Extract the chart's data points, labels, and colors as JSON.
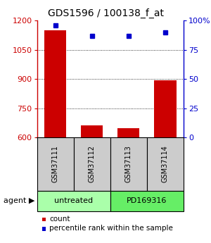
{
  "title": "GDS1596 / 100138_f_at",
  "samples": [
    "GSM37111",
    "GSM37112",
    "GSM37113",
    "GSM37114"
  ],
  "counts": [
    1150,
    660,
    648,
    893
  ],
  "percentiles": [
    96,
    87,
    87,
    90
  ],
  "ylim_left": [
    600,
    1200
  ],
  "yticks_left": [
    600,
    750,
    900,
    1050,
    1200
  ],
  "ylim_right": [
    0,
    100
  ],
  "yticks_right": [
    0,
    25,
    50,
    75,
    100
  ],
  "bar_color": "#cc0000",
  "dot_color": "#0000cc",
  "groups": [
    {
      "label": "untreated",
      "indices": [
        0,
        1
      ],
      "color": "#aaffaa"
    },
    {
      "label": "PD169316",
      "indices": [
        2,
        3
      ],
      "color": "#66ee66"
    }
  ],
  "agent_label": "agent",
  "legend_count_label": "count",
  "legend_pct_label": "percentile rank within the sample",
  "sample_box_color": "#cccccc",
  "title_fontsize": 10,
  "tick_fontsize": 8,
  "sample_fontsize": 7,
  "group_fontsize": 8,
  "legend_fontsize": 7.5
}
